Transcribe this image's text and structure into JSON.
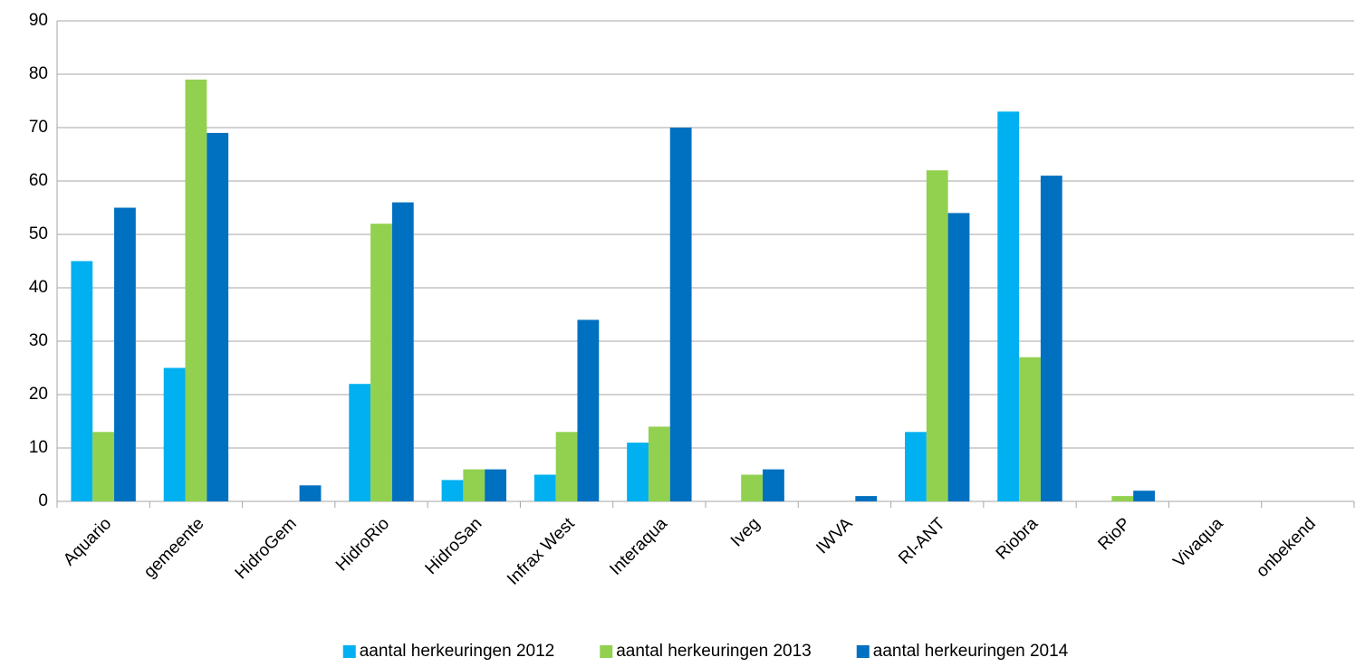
{
  "chart_data": {
    "type": "bar",
    "categories": [
      "Aquario",
      "gemeente",
      "HidroGem",
      "HidroRio",
      "HidroSan",
      "Infrax West",
      "Interaqua",
      "Iveg",
      "IWVA",
      "RI-ANT",
      "Riobra",
      "RioP",
      "Vivaqua",
      "onbekend"
    ],
    "series": [
      {
        "name": "aantal herkeuringen 2012",
        "color": "#00b0f0",
        "values": [
          45,
          25,
          0,
          22,
          4,
          5,
          11,
          0,
          0,
          13,
          73,
          0,
          0,
          0
        ]
      },
      {
        "name": "aantal herkeuringen 2013",
        "color": "#92d050",
        "values": [
          13,
          79,
          0,
          52,
          6,
          13,
          14,
          5,
          0,
          62,
          27,
          1,
          0,
          0
        ]
      },
      {
        "name": "aantal herkeuringen 2014",
        "color": "#0070c0",
        "values": [
          55,
          69,
          3,
          56,
          6,
          34,
          70,
          6,
          1,
          54,
          61,
          2,
          0,
          0
        ]
      }
    ],
    "ylim": [
      0,
      90
    ],
    "yticks": [
      0,
      10,
      20,
      30,
      40,
      50,
      60,
      70,
      80,
      90
    ],
    "grid": true,
    "legend": "bottom"
  }
}
